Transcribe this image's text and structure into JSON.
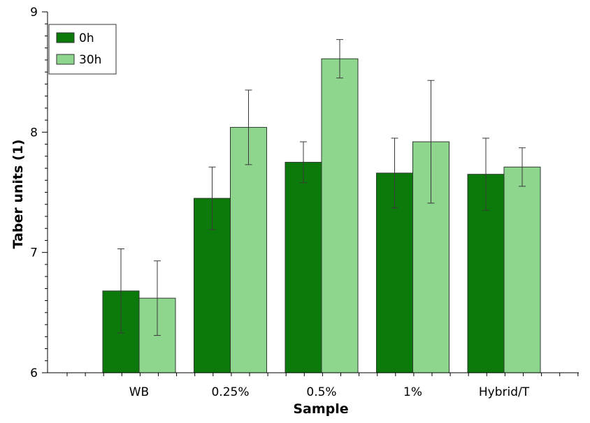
{
  "chart_data": {
    "type": "bar",
    "title": "",
    "xlabel": "Sample",
    "ylabel": "Taber units (1)",
    "ylim": [
      6,
      9
    ],
    "yticks": [
      6,
      7,
      8,
      9
    ],
    "grid": false,
    "legend_position": "top-left",
    "categories": [
      "WB",
      "0.25%",
      "0.5%",
      "1%",
      "Hybrid/T"
    ],
    "series": [
      {
        "name": "0h",
        "color": "#0b7a0b",
        "values": [
          6.68,
          7.45,
          7.75,
          7.66,
          7.65
        ],
        "error": [
          0.35,
          0.26,
          0.17,
          0.29,
          0.3
        ]
      },
      {
        "name": "30h",
        "color": "#8ed68e",
        "values": [
          6.62,
          8.04,
          8.61,
          7.92,
          7.71
        ],
        "error": [
          0.31,
          0.31,
          0.16,
          0.51,
          0.16
        ]
      }
    ]
  }
}
